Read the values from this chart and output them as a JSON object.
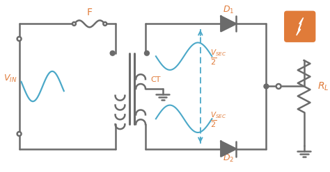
{
  "bg_color": "#ffffff",
  "gray": "#6b6b6b",
  "orange": "#e07b39",
  "blue": "#4ba8c8",
  "figsize": [
    4.74,
    2.48
  ],
  "dpi": 100
}
